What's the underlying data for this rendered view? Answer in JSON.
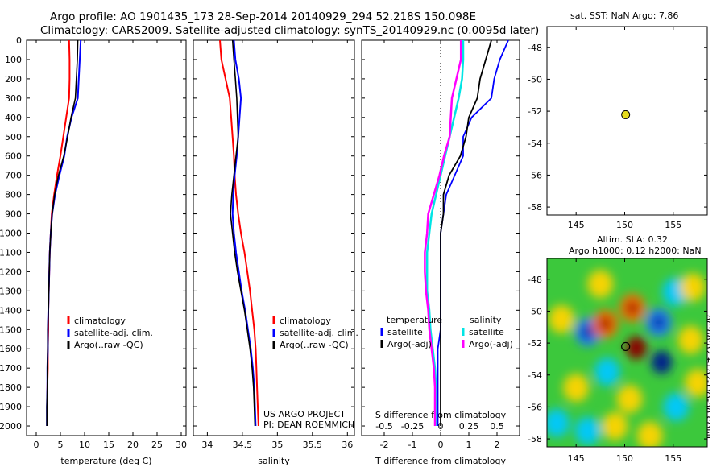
{
  "header": {
    "title_line1": "Argo profile: AO 1901435_173 28-Sep-2014 20140929_294 52.218S 150.098E",
    "title_line2": "Climatology: CARS2009. Satellite-adjusted climatology: synTS_20140929.nc (0.0095d later)"
  },
  "sst_panel": {
    "title": "sat. SST: NaN Argo: 7.86"
  },
  "sla_panel": {
    "title_line1": "Altim. SLA: 0.32",
    "title_line2": "Argo h1000: 0.12 h2000: NaN"
  },
  "footer": {
    "project_line1": "US ARGO PROJECT",
    "project_line2": "PI: DEAN ROEMMICH",
    "stamp": "IMOS 06-Oct-2014 20:00:50"
  },
  "colors": {
    "climatology": "#ff0000",
    "satellite": "#0000ff",
    "argo": "#000000",
    "satellite_s": "#00e5e5",
    "argo_s": "#ff00ff",
    "float_marker": "#e6dc1e"
  },
  "chart_data": [
    {
      "type": "line",
      "xlabel": "temperature (deg C)",
      "xlim": [
        -2,
        31
      ],
      "ylim": [
        2050,
        0
      ],
      "xticks": [
        0,
        5,
        10,
        15,
        20,
        25,
        30
      ],
      "yticks": [
        0,
        100,
        200,
        300,
        400,
        500,
        600,
        700,
        800,
        900,
        1000,
        1100,
        1200,
        1300,
        1400,
        1500,
        1600,
        1700,
        1800,
        1900,
        2000
      ],
      "y": [
        0,
        100,
        200,
        300,
        400,
        500,
        600,
        700,
        800,
        900,
        1000,
        1100,
        1200,
        1300,
        1400,
        1500,
        1600,
        1700,
        1800,
        1900,
        2000
      ],
      "series": [
        {
          "name": "climatology",
          "color": "#ff0000",
          "values": [
            6.8,
            6.9,
            6.9,
            6.8,
            6.2,
            5.6,
            5.0,
            4.3,
            3.7,
            3.2,
            3.0,
            2.8,
            2.7,
            2.6,
            2.5,
            2.5,
            2.4,
            2.4,
            2.3,
            2.3,
            2.3
          ]
        },
        {
          "name": "satellite-adj. clim.",
          "color": "#0000ff",
          "values": [
            9.2,
            9.0,
            8.8,
            8.6,
            7.3,
            6.4,
            5.8,
            4.8,
            3.9,
            3.3,
            3.0,
            2.8,
            2.7,
            2.6,
            2.5,
            2.4,
            2.4,
            2.3,
            2.3,
            2.2,
            2.2
          ]
        },
        {
          "name": "Argo(..raw -QC)",
          "color": "#000000",
          "values": [
            8.6,
            8.5,
            8.3,
            8.1,
            7.2,
            6.5,
            5.7,
            4.6,
            3.8,
            3.3,
            3.0,
            2.8,
            2.7,
            2.6,
            2.5,
            2.4,
            2.4,
            2.3,
            2.3,
            2.2,
            2.2
          ]
        }
      ]
    },
    {
      "type": "line",
      "xlabel": "salinity",
      "xlim": [
        33.8,
        36.1
      ],
      "ylim": [
        2050,
        0
      ],
      "xticks": [
        34,
        34.5,
        35,
        35.5,
        36
      ],
      "xtick_labels": [
        "34",
        "34.5",
        "35",
        "35.5",
        "36"
      ],
      "y": [
        0,
        100,
        200,
        300,
        400,
        500,
        600,
        700,
        800,
        900,
        1000,
        1100,
        1200,
        1300,
        1400,
        1500,
        1600,
        1700,
        1800,
        1900,
        2000
      ],
      "series": [
        {
          "name": "climatology",
          "color": "#ff0000",
          "values": [
            34.18,
            34.2,
            34.26,
            34.32,
            34.34,
            34.36,
            34.38,
            34.39,
            34.41,
            34.44,
            34.48,
            34.53,
            34.57,
            34.61,
            34.64,
            34.67,
            34.69,
            34.7,
            34.71,
            34.72,
            34.73
          ]
        },
        {
          "name": "satellite-adj. clim.",
          "color": "#0000ff",
          "values": [
            34.38,
            34.4,
            34.45,
            34.48,
            34.46,
            34.44,
            34.42,
            34.39,
            34.37,
            34.36,
            34.38,
            34.41,
            34.45,
            34.49,
            34.54,
            34.58,
            34.62,
            34.65,
            34.67,
            34.68,
            34.69
          ]
        },
        {
          "name": "Argo(..raw -QC)",
          "color": "#000000",
          "values": [
            34.36,
            34.38,
            34.4,
            34.42,
            34.43,
            34.44,
            34.41,
            34.38,
            34.35,
            34.33,
            34.36,
            34.39,
            34.43,
            34.48,
            34.53,
            34.57,
            34.61,
            34.64,
            34.66,
            34.67,
            34.68
          ]
        }
      ]
    },
    {
      "type": "line",
      "xlabel": "T difference from climatology",
      "xlabel_top": "S difference from climatology",
      "xlim": [
        -2.8,
        2.8
      ],
      "ylim": [
        2050,
        0
      ],
      "xticks": [
        -2,
        -1,
        0,
        1,
        2
      ],
      "xticks_top": [
        -0.5,
        -0.25,
        0,
        0.25,
        0.5
      ],
      "xticks_top_labels": [
        "-0.5",
        "-0.25",
        "0",
        "0.25",
        "0.5"
      ],
      "y": [
        0,
        100,
        200,
        300,
        400,
        500,
        600,
        700,
        800,
        900,
        1000,
        1100,
        1200,
        1300,
        1400,
        1500,
        1600,
        1700,
        1800,
        1900,
        2000
      ],
      "legend_groups": [
        "temperature",
        "salinity"
      ],
      "series": [
        {
          "name": "satellite",
          "group": "temperature",
          "color": "#0000ff",
          "values": [
            2.4,
            2.1,
            1.9,
            1.8,
            1.1,
            0.8,
            0.8,
            0.5,
            0.2,
            0.1,
            0.0,
            0.0,
            0.0,
            0.0,
            0.0,
            0.0,
            -0.1,
            -0.1,
            -0.1,
            -0.1,
            -0.1
          ]
        },
        {
          "name": "Argo(-adj)",
          "group": "temperature",
          "color": "#000000",
          "values": [
            1.8,
            1.6,
            1.4,
            1.3,
            1.0,
            0.9,
            0.7,
            0.3,
            0.1,
            0.1,
            0.0,
            0.0,
            0.0,
            0.0,
            0.0,
            0.0,
            0.0,
            0.0,
            0.0,
            0.0,
            0.0
          ]
        },
        {
          "name": "satellite",
          "group": "salinity",
          "color": "#00e5e5",
          "values": [
            0.2,
            0.2,
            0.19,
            0.16,
            0.12,
            0.08,
            0.04,
            0.0,
            -0.04,
            -0.08,
            -0.1,
            -0.12,
            -0.12,
            -0.12,
            -0.1,
            -0.09,
            -0.07,
            -0.05,
            -0.04,
            -0.04,
            -0.04
          ]
        },
        {
          "name": "Argo(-adj)",
          "group": "salinity",
          "color": "#ff00ff",
          "values": [
            0.18,
            0.18,
            0.14,
            0.1,
            0.09,
            0.08,
            0.03,
            -0.01,
            -0.06,
            -0.11,
            -0.12,
            -0.14,
            -0.14,
            -0.13,
            -0.11,
            -0.1,
            -0.08,
            -0.06,
            -0.05,
            -0.05,
            -0.05
          ]
        }
      ]
    },
    {
      "type": "scatter",
      "xlim": [
        142,
        158.5
      ],
      "ylim": [
        -58.5,
        -46.7
      ],
      "xticks": [
        145,
        150,
        155
      ],
      "yticks": [
        -48,
        -50,
        -52,
        -54,
        -56,
        -58
      ],
      "points": [
        {
          "x": 150.098,
          "y": -52.218
        }
      ]
    },
    {
      "type": "heatmap",
      "xlim": [
        142,
        158.5
      ],
      "ylim": [
        -58.5,
        -46.7
      ],
      "xticks": [
        145,
        150,
        155
      ],
      "yticks": [
        -48,
        -50,
        -52,
        -54,
        -56,
        -58
      ],
      "points": [
        {
          "x": 150.098,
          "y": -52.218
        }
      ],
      "blobs": [
        {
          "x": 143.5,
          "y": -50.5,
          "v": 0.35
        },
        {
          "x": 146.2,
          "y": -51.3,
          "v": -0.55
        },
        {
          "x": 148.0,
          "y": -50.8,
          "v": 0.5
        },
        {
          "x": 150.8,
          "y": -49.8,
          "v": 0.55
        },
        {
          "x": 153.5,
          "y": -50.7,
          "v": -0.7
        },
        {
          "x": 155.2,
          "y": -48.8,
          "v": -0.35
        },
        {
          "x": 156.8,
          "y": -51.8,
          "v": 0.35
        },
        {
          "x": 151.2,
          "y": -52.3,
          "v": 1.0
        },
        {
          "x": 153.8,
          "y": -53.2,
          "v": -1.0
        },
        {
          "x": 145.0,
          "y": -54.8,
          "v": 0.45
        },
        {
          "x": 148.2,
          "y": -53.8,
          "v": -0.35
        },
        {
          "x": 150.5,
          "y": -55.5,
          "v": 0.3
        },
        {
          "x": 155.3,
          "y": -56.0,
          "v": -0.4
        },
        {
          "x": 157.5,
          "y": -54.5,
          "v": 0.4
        },
        {
          "x": 143.0,
          "y": -57.0,
          "v": -0.3
        },
        {
          "x": 146.2,
          "y": -57.5,
          "v": -0.35
        },
        {
          "x": 152.6,
          "y": -57.8,
          "v": 0.3
        },
        {
          "x": 157.0,
          "y": -48.5,
          "v": 0.45
        },
        {
          "x": 147.5,
          "y": -48.3,
          "v": 0.25
        },
        {
          "x": 149.0,
          "y": -57.2,
          "v": 0.25
        }
      ]
    }
  ]
}
